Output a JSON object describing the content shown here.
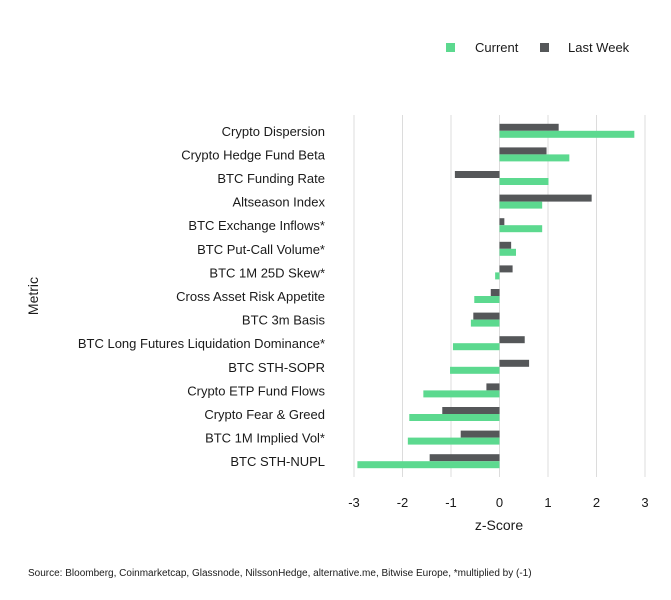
{
  "chart_data": {
    "type": "bar",
    "orientation": "horizontal",
    "xlabel": "z-Score",
    "ylabel": "Metric",
    "xlim": [
      -3,
      3
    ],
    "xticks": [
      "-3",
      "-2",
      "-1",
      "0",
      "1",
      "2",
      "3"
    ],
    "grid": true,
    "legend_position": "top-right",
    "categories": [
      "Crypto Dispersion",
      "Crypto Hedge Fund Beta",
      "BTC Funding Rate",
      "Altseason Index",
      "BTC Exchange Inflows*",
      "BTC Put-Call Volume*",
      "BTC 1M 25D Skew*",
      "Cross Asset Risk Appetite",
      "BTC 3m Basis",
      "BTC Long Futures Liquidation Dominance*",
      "BTC STH-SOPR",
      "Crypto ETP Fund Flows",
      "Crypto Fear & Greed",
      "BTC 1M Implied Vol*",
      "BTC STH-NUPL"
    ],
    "series": [
      {
        "name": "Current",
        "color": "#5cd98f",
        "values": [
          2.78,
          1.44,
          1.01,
          0.88,
          0.88,
          0.34,
          -0.09,
          -0.52,
          -0.59,
          -0.96,
          -1.02,
          -1.57,
          -1.86,
          -1.89,
          -2.93
        ]
      },
      {
        "name": "Last Week",
        "color": "#555759",
        "values": [
          1.22,
          0.97,
          -0.92,
          1.9,
          0.1,
          0.24,
          0.27,
          -0.18,
          -0.54,
          0.52,
          0.61,
          -0.27,
          -1.18,
          -0.8,
          -1.44
        ]
      }
    ]
  },
  "source": "Source: Bloomberg, Coinmarketcap, Glassnode, NilssonHedge, alternative.me, Bitwise Europe, *multiplied by (-1)"
}
